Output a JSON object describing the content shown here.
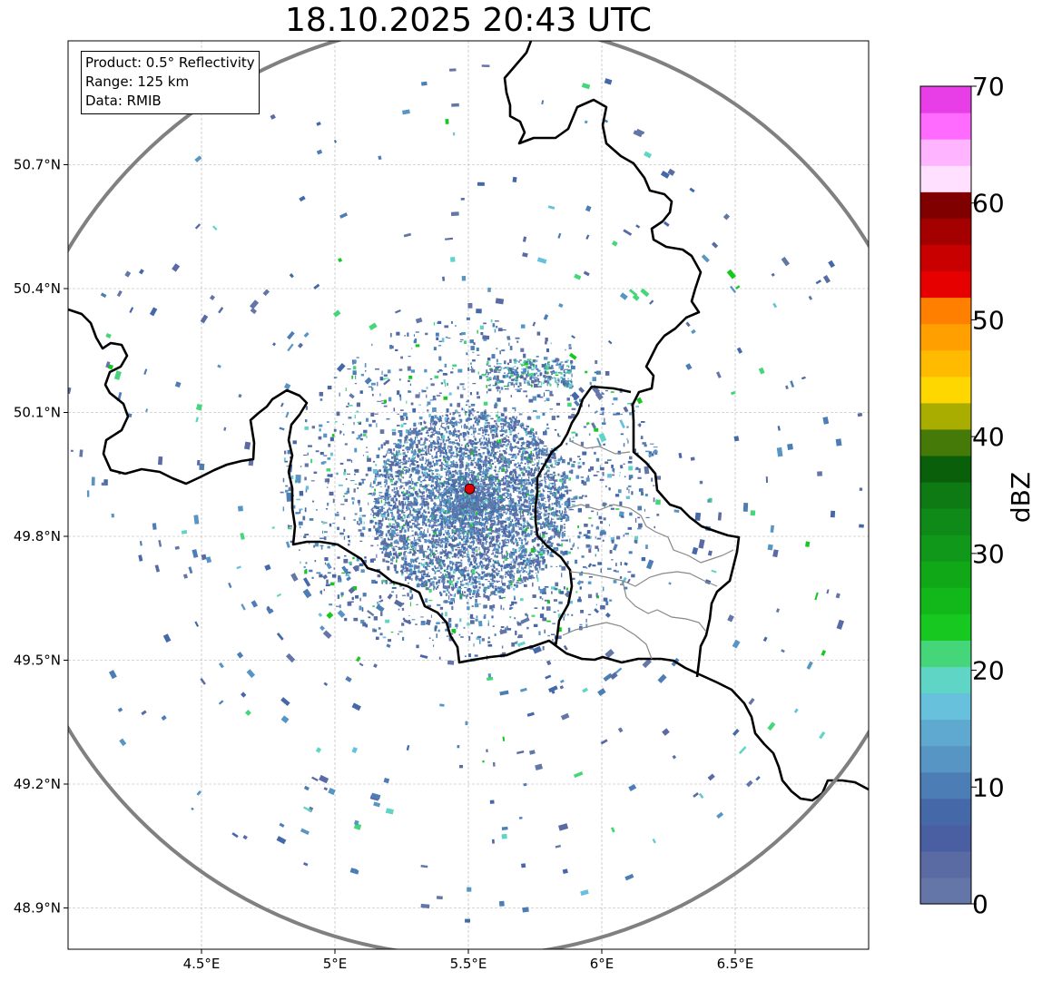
{
  "title": "18.10.2025 20:43 UTC",
  "info": {
    "product": "Product: 0.5° Reflectivity",
    "range": "Range: 125 km",
    "data": "Data: RMIB"
  },
  "map": {
    "lon_range": [
      4.0,
      7.0
    ],
    "lat_range": [
      48.8,
      51.0
    ],
    "x_ticks": [
      {
        "value": 4.5,
        "label": "4.5°E"
      },
      {
        "value": 5.0,
        "label": "5°E"
      },
      {
        "value": 5.5,
        "label": "5.5°E"
      },
      {
        "value": 6.0,
        "label": "6°E"
      },
      {
        "value": 6.5,
        "label": "6.5°E"
      }
    ],
    "y_ticks": [
      {
        "value": 50.7,
        "label": "50.7°N"
      },
      {
        "value": 50.4,
        "label": "50.4°N"
      },
      {
        "value": 50.1,
        "label": "50.1°N"
      },
      {
        "value": 49.8,
        "label": "49.8°N"
      },
      {
        "value": 49.5,
        "label": "49.5°N"
      },
      {
        "value": 49.2,
        "label": "49.2°N"
      },
      {
        "value": 48.9,
        "label": "48.9°N"
      }
    ],
    "radar_site": {
      "lon": 5.505,
      "lat": 49.915
    },
    "range_ring_colour": "#808080",
    "site_colour": "#e00000"
  },
  "colorbar": {
    "label": "dBZ",
    "min": 0,
    "max": 70,
    "ticks": [
      {
        "value": 0,
        "label": "0"
      },
      {
        "value": 10,
        "label": "10"
      },
      {
        "value": 20,
        "label": "20"
      },
      {
        "value": 30,
        "label": "30"
      },
      {
        "value": 40,
        "label": "40"
      },
      {
        "value": 50,
        "label": "50"
      },
      {
        "value": 60,
        "label": "60"
      },
      {
        "value": 70,
        "label": "70"
      }
    ],
    "colors": [
      "#6476a8",
      "#5a6ba4",
      "#4a5fa2",
      "#4568a8",
      "#4d7db5",
      "#5795c4",
      "#5fa8cf",
      "#67c1dd",
      "#5fd5c5",
      "#45d67a",
      "#16c81f",
      "#12b81a",
      "#11a818",
      "#10981a",
      "#0f8a18",
      "#0d7a13",
      "#0a5f0a",
      "#467a08",
      "#a8ad00",
      "#ffd700",
      "#ffbb00",
      "#ff9f00",
      "#ff7f00",
      "#e60000",
      "#c80000",
      "#a50000",
      "#800000",
      "#ffe0ff",
      "#ffb4ff",
      "#ff6bff",
      "#e83ee8"
    ]
  }
}
